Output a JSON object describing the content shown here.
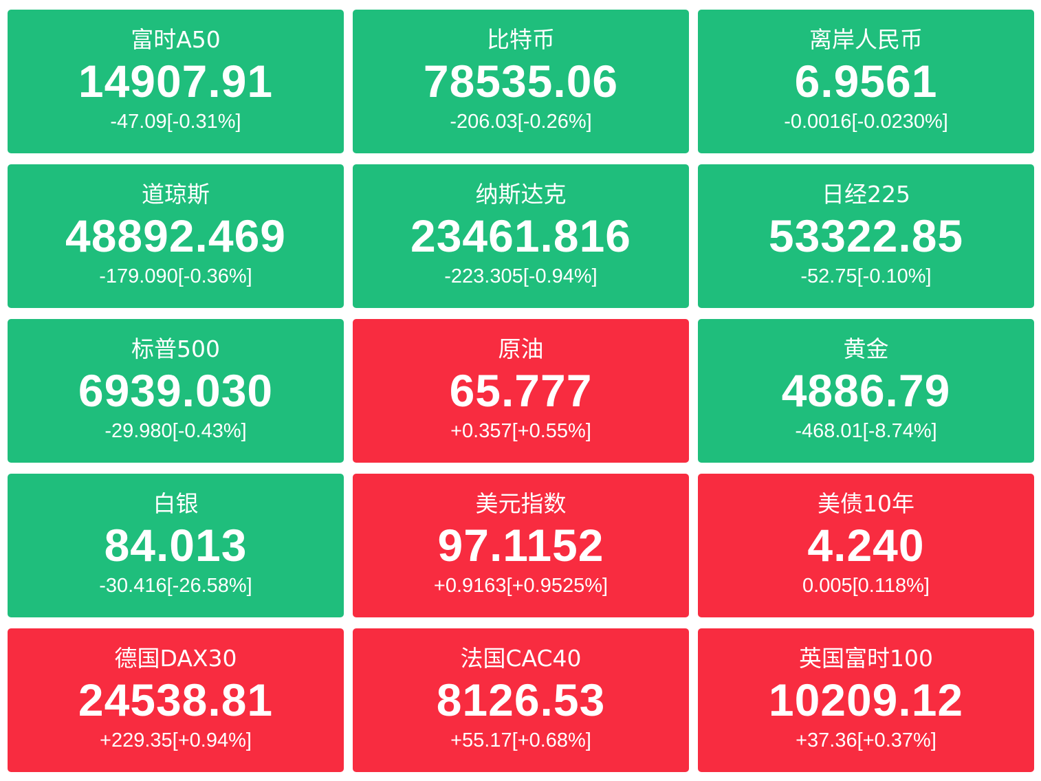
{
  "colors": {
    "down": "#1fbe7c",
    "up": "#f82c40",
    "text": "#ffffff"
  },
  "tiles": [
    {
      "name": "富时A50",
      "price": "14907.91",
      "change": "-47.09[-0.31%]",
      "direction": "down"
    },
    {
      "name": "比特币",
      "price": "78535.06",
      "change": "-206.03[-0.26%]",
      "direction": "down"
    },
    {
      "name": "离岸人民币",
      "price": "6.9561",
      "change": "-0.0016[-0.0230%]",
      "direction": "down"
    },
    {
      "name": "道琼斯",
      "price": "48892.469",
      "change": "-179.090[-0.36%]",
      "direction": "down"
    },
    {
      "name": "纳斯达克",
      "price": "23461.816",
      "change": "-223.305[-0.94%]",
      "direction": "down"
    },
    {
      "name": "日经225",
      "price": "53322.85",
      "change": "-52.75[-0.10%]",
      "direction": "down"
    },
    {
      "name": "标普500",
      "price": "6939.030",
      "change": "-29.980[-0.43%]",
      "direction": "down"
    },
    {
      "name": "原油",
      "price": "65.777",
      "change": "+0.357[+0.55%]",
      "direction": "up"
    },
    {
      "name": "黄金",
      "price": "4886.79",
      "change": "-468.01[-8.74%]",
      "direction": "down"
    },
    {
      "name": "白银",
      "price": "84.013",
      "change": "-30.416[-26.58%]",
      "direction": "down"
    },
    {
      "name": "美元指数",
      "price": "97.1152",
      "change": "+0.9163[+0.9525%]",
      "direction": "up"
    },
    {
      "name": "美债10年",
      "price": "4.240",
      "change": "0.005[0.118%]",
      "direction": "up"
    },
    {
      "name": "德国DAX30",
      "price": "24538.81",
      "change": "+229.35[+0.94%]",
      "direction": "up"
    },
    {
      "name": "法国CAC40",
      "price": "8126.53",
      "change": "+55.17[+0.68%]",
      "direction": "up"
    },
    {
      "name": "英国富时100",
      "price": "10209.12",
      "change": "+37.36[+0.37%]",
      "direction": "up"
    }
  ]
}
